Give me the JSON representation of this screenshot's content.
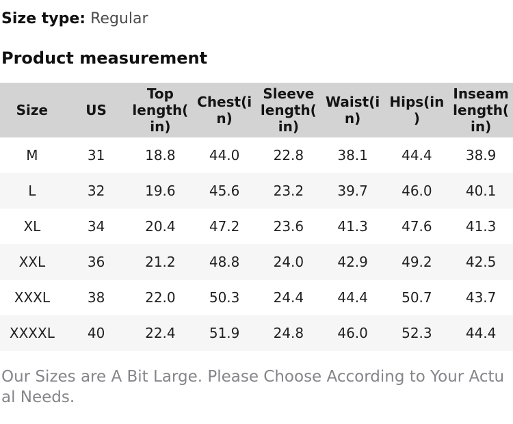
{
  "size_type": {
    "label": "Size type:",
    "value": "Regular"
  },
  "section_title": "Product measurement",
  "table": {
    "headers": [
      "Size",
      "US",
      "Top length(in)",
      "Chest(in)",
      "Sleeve length(in)",
      "Waist(in)",
      "Hips(in)",
      "Inseam length(in)"
    ],
    "rows": [
      [
        "M",
        "31",
        "18.8",
        "44.0",
        "22.8",
        "38.1",
        "44.4",
        "38.9"
      ],
      [
        "L",
        "32",
        "19.6",
        "45.6",
        "23.2",
        "39.7",
        "46.0",
        "40.1"
      ],
      [
        "XL",
        "34",
        "20.4",
        "47.2",
        "23.6",
        "41.3",
        "47.6",
        "41.3"
      ],
      [
        "XXL",
        "36",
        "21.2",
        "48.8",
        "24.0",
        "42.9",
        "49.2",
        "42.5"
      ],
      [
        "XXXL",
        "38",
        "22.0",
        "50.3",
        "24.4",
        "44.4",
        "50.7",
        "43.7"
      ],
      [
        "XXXXL",
        "40",
        "22.4",
        "51.9",
        "24.8",
        "46.0",
        "52.3",
        "44.4"
      ]
    ]
  },
  "footer_note": "Our Sizes are A Bit Large. Please Choose According to Your Actual Needs.",
  "colors": {
    "header_bg": "#d3d3d3",
    "stripe_bg": "#f6f6f7",
    "label_text": "#101010",
    "value_text": "#4b4b4b",
    "note_text": "#85858a"
  }
}
